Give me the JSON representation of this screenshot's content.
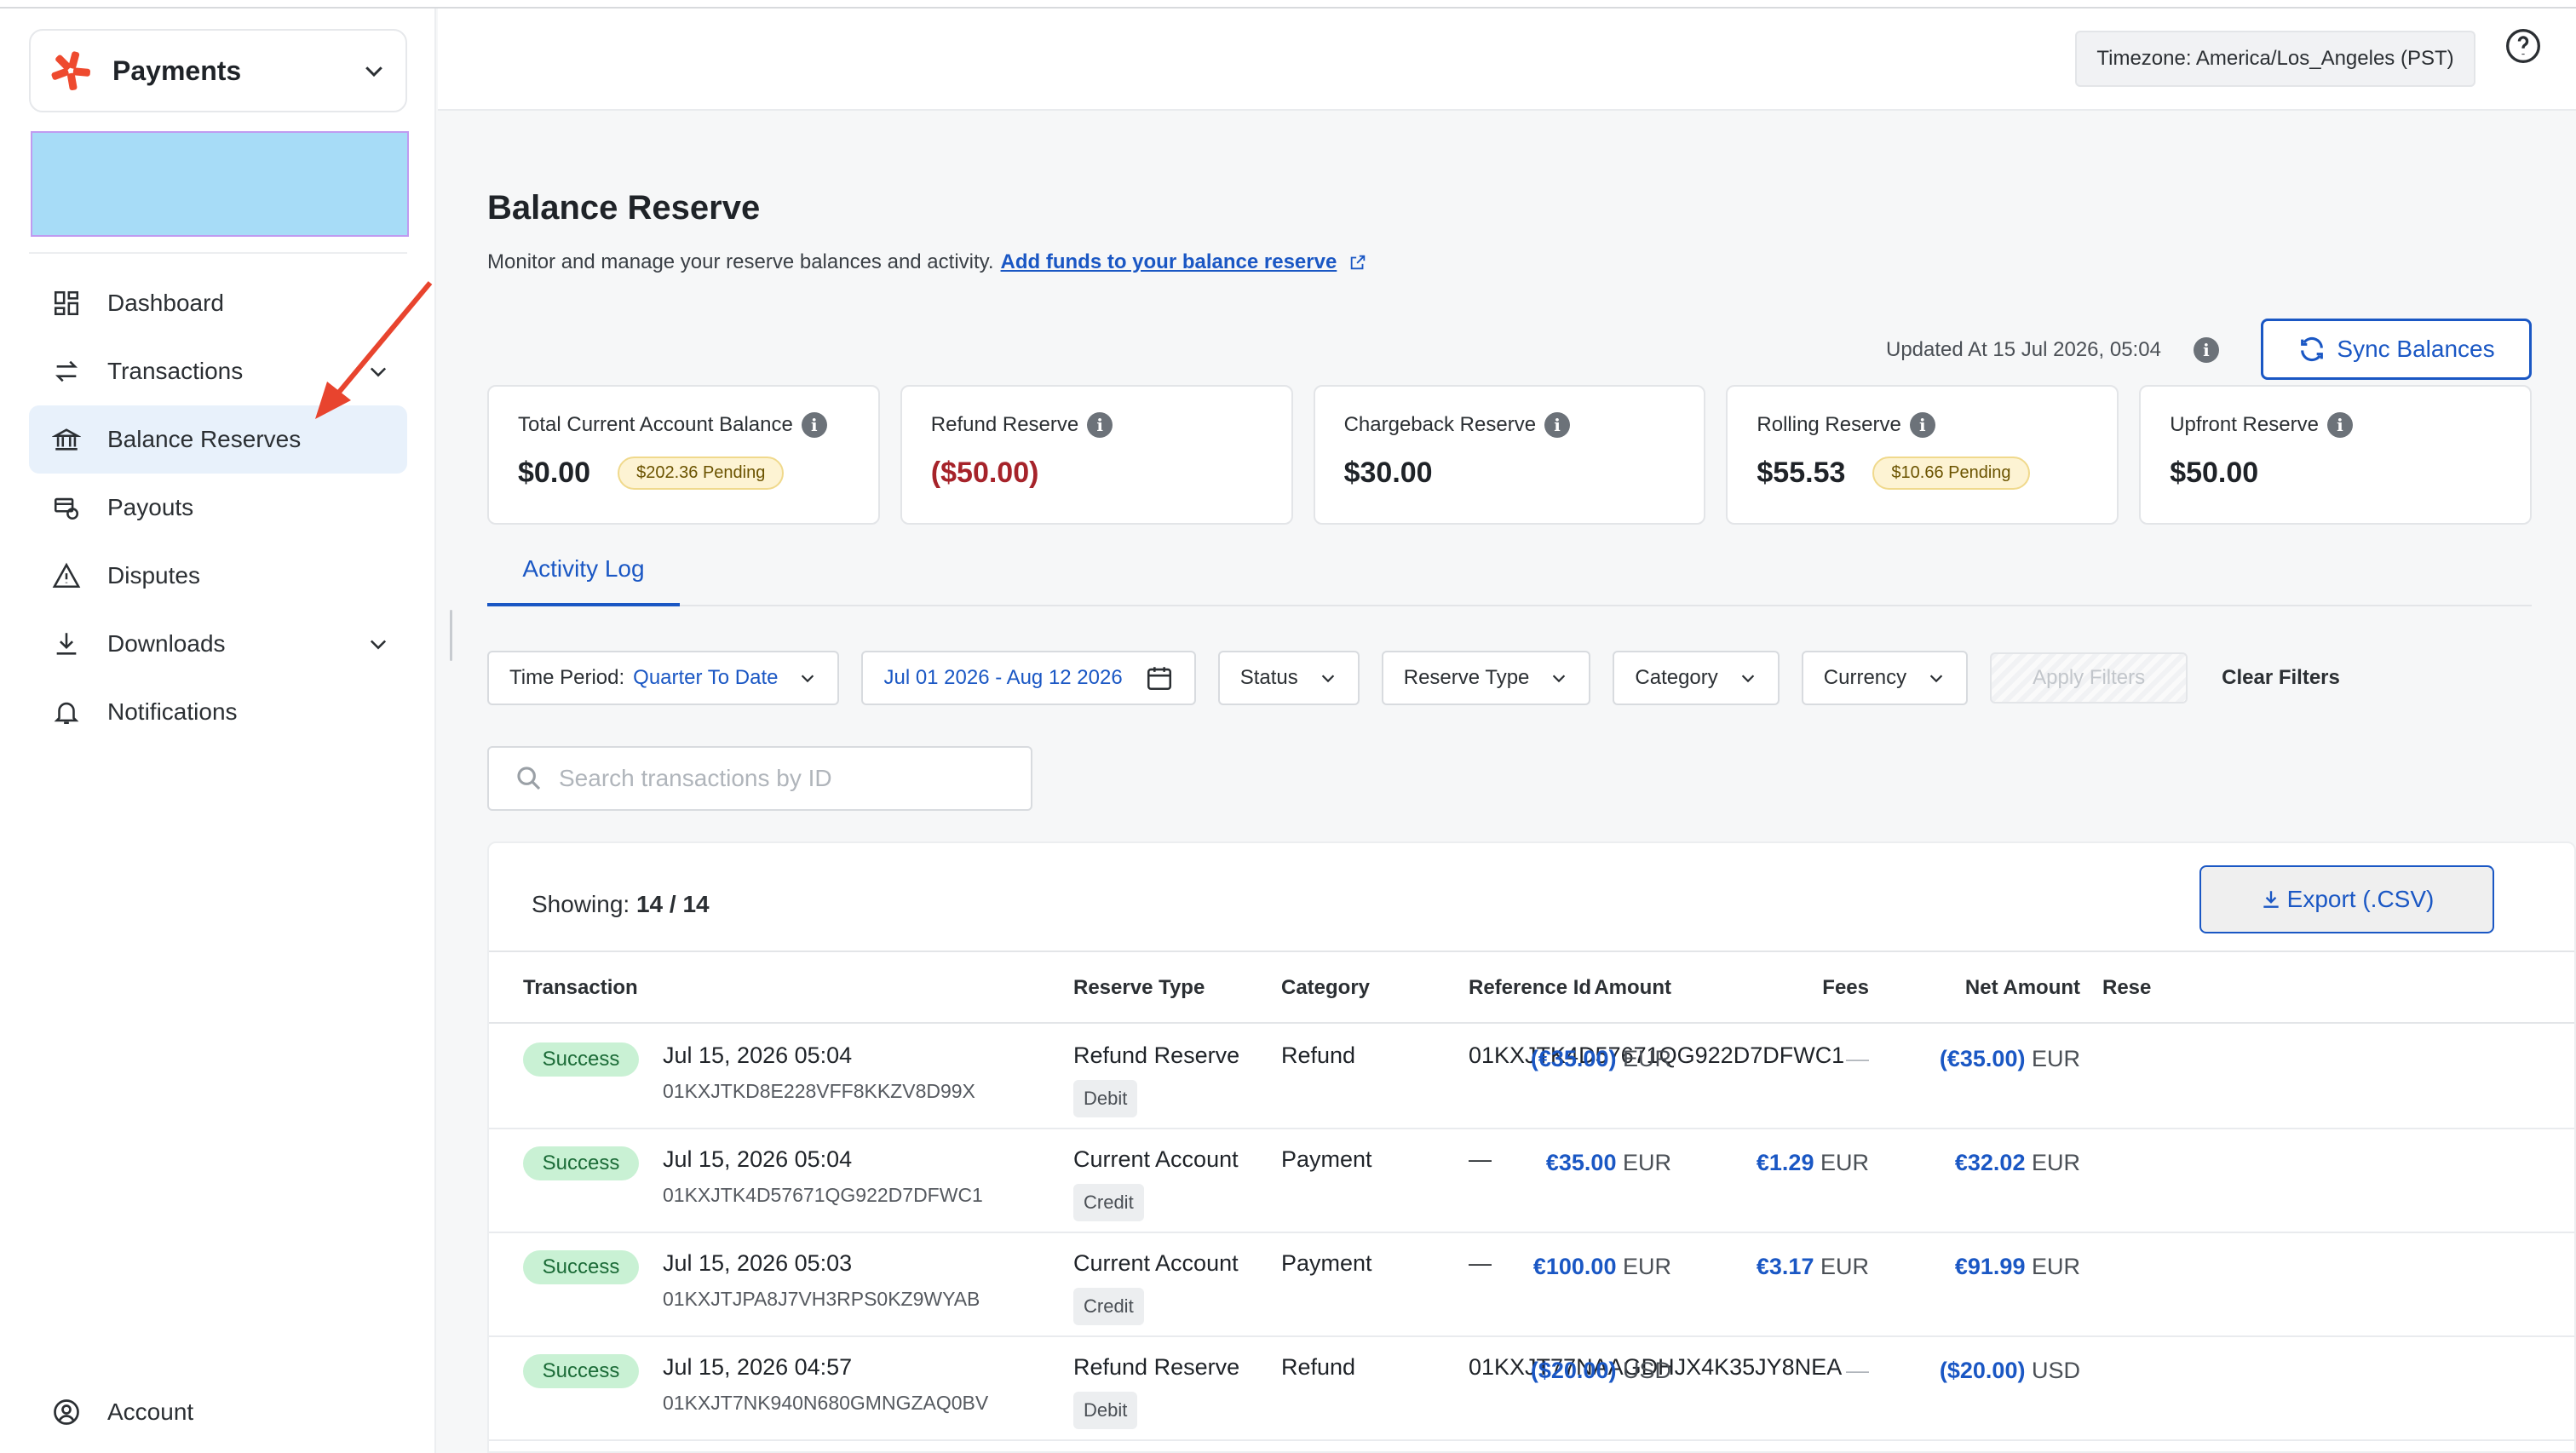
{
  "app": {
    "name": "Payments"
  },
  "nav": {
    "items": [
      {
        "label": "Dashboard"
      },
      {
        "label": "Transactions"
      },
      {
        "label": "Balance Reserves"
      },
      {
        "label": "Payouts"
      },
      {
        "label": "Disputes"
      },
      {
        "label": "Downloads"
      },
      {
        "label": "Notifications"
      }
    ],
    "account": "Account"
  },
  "header": {
    "timezone": "Timezone: America/Los_Angeles (PST)"
  },
  "page": {
    "title": "Balance Reserve",
    "subtitle": "Monitor and manage your reserve balances and activity.",
    "add_funds_link": "Add funds to your balance reserve",
    "updated": "Updated At 15 Jul 2026, 05:04",
    "sync_label": "Sync Balances"
  },
  "cards": [
    {
      "label": "Total Current Account Balance",
      "value": "$0.00",
      "pending": "$202.36 Pending"
    },
    {
      "label": "Refund Reserve",
      "value": "($50.00)"
    },
    {
      "label": "Chargeback Reserve",
      "value": "$30.00"
    },
    {
      "label": "Rolling Reserve",
      "value": "$55.53",
      "pending": "$10.66 Pending"
    },
    {
      "label": "Upfront Reserve",
      "value": "$50.00"
    }
  ],
  "tabs": {
    "activity_log": "Activity Log"
  },
  "filters": {
    "time_period_label": "Time Period:",
    "time_period_value": "Quarter To Date",
    "date_range": "Jul 01 2026 - Aug 12 2026",
    "status": "Status",
    "reserve_type": "Reserve Type",
    "category": "Category",
    "currency": "Currency",
    "apply": "Apply Filters",
    "clear": "Clear Filters"
  },
  "search": {
    "placeholder": "Search transactions by ID"
  },
  "table": {
    "showing_label": "Showing:",
    "showing_value": "14 / 14",
    "export_label": "Export (.CSV)",
    "columns": {
      "transaction": "Transaction",
      "reserve_type": "Reserve Type",
      "category": "Category",
      "reference_id": "Reference Id",
      "amount": "Amount",
      "fees": "Fees",
      "net_amount": "Net Amount",
      "reserve": "Rese"
    },
    "rows": [
      {
        "status": "Success",
        "date": "Jul 15, 2026 05:04",
        "id": "01KXJTKD8E228VFF8KKZV8D99X",
        "reserve_type": "Refund Reserve",
        "direction": "Debit",
        "category": "Refund",
        "reference": "01KXJTK4D57671QG922D7DFWC1",
        "amount": "(€35.00)",
        "amount_cur": "EUR",
        "fees": "—",
        "fees_cur": "",
        "net": "(€35.00)",
        "net_cur": "EUR"
      },
      {
        "status": "Success",
        "date": "Jul 15, 2026 05:04",
        "id": "01KXJTK4D57671QG922D7DFWC1",
        "reserve_type": "Current Account",
        "direction": "Credit",
        "category": "Payment",
        "reference": "—",
        "amount": "€35.00",
        "amount_cur": "EUR",
        "fees": "€1.29",
        "fees_cur": "EUR",
        "net": "€32.02",
        "net_cur": "EUR"
      },
      {
        "status": "Success",
        "date": "Jul 15, 2026 05:03",
        "id": "01KXJTJPA8J7VH3RPS0KZ9WYAB",
        "reserve_type": "Current Account",
        "direction": "Credit",
        "category": "Payment",
        "reference": "—",
        "amount": "€100.00",
        "amount_cur": "EUR",
        "fees": "€3.17",
        "fees_cur": "EUR",
        "net": "€91.99",
        "net_cur": "EUR"
      },
      {
        "status": "Success",
        "date": "Jul 15, 2026 04:57",
        "id": "01KXJT7NK940N680GMNGZAQ0BV",
        "reserve_type": "Refund Reserve",
        "direction": "Debit",
        "category": "Refund",
        "reference": "01KXJT77NAAGDHJX4K35JY8NEA",
        "amount": "($20.00)",
        "amount_cur": "USD",
        "fees": "—",
        "fees_cur": "",
        "net": "($20.00)",
        "net_cur": "USD"
      }
    ]
  },
  "colors": {
    "accent": "#1a57c4",
    "negative": "#a6232a",
    "success_bg": "#c9f1d4",
    "active_nav_bg": "#e8f1fb",
    "annotation_arrow": "#e8442e"
  }
}
